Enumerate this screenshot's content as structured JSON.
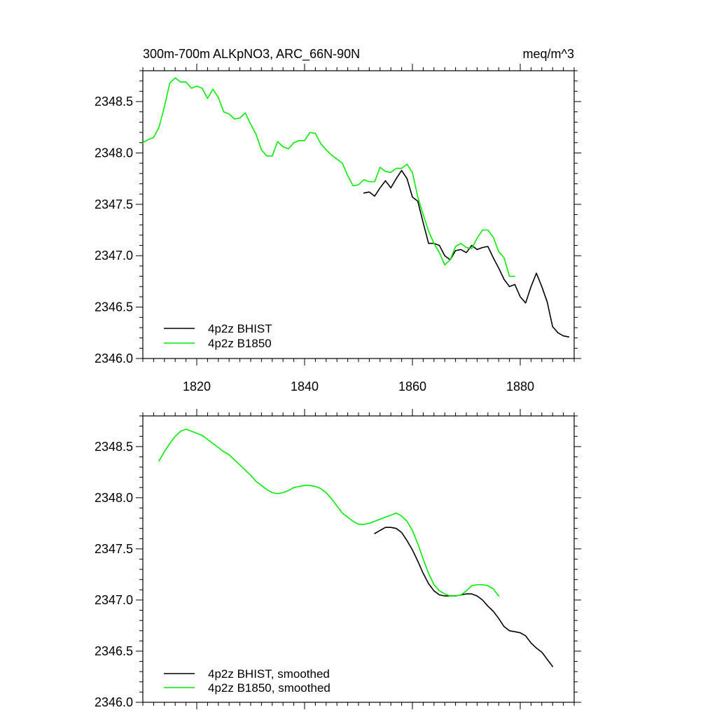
{
  "colors": {
    "bhist": "#000000",
    "b1850": "#00ee00",
    "axis": "#000000",
    "background": "#ffffff"
  },
  "chart_data": [
    {
      "type": "line",
      "title": "300m-700m ALKpNO3, ARC_66N-90N",
      "units_label": "meq/m^3",
      "xlim": [
        1810,
        1890
      ],
      "ylim": [
        2346.0,
        2348.8
      ],
      "xticks": [
        1820,
        1840,
        1860,
        1880
      ],
      "yticks": [
        2346.0,
        2346.5,
        2347.0,
        2347.5,
        2348.0,
        2348.5
      ],
      "xtick_labels": [
        "1820",
        "1840",
        "1860",
        "1880"
      ],
      "ytick_labels": [
        "2346.0",
        "2346.5",
        "2347.0",
        "2347.5",
        "2348.0",
        "2348.5"
      ],
      "legend": {
        "location": "bottom-left",
        "entries": [
          "4p2z BHIST",
          "4p2z B1850"
        ]
      },
      "series": [
        {
          "name": "4p2z BHIST",
          "color": "#000000",
          "x": [
            1851,
            1852,
            1853,
            1854,
            1855,
            1856,
            1857,
            1858,
            1859,
            1860,
            1861,
            1862,
            1863,
            1864,
            1865,
            1866,
            1867,
            1868,
            1869,
            1870,
            1871,
            1872,
            1873,
            1874,
            1875,
            1876,
            1877,
            1878,
            1879,
            1880,
            1881,
            1882,
            1883,
            1884,
            1885,
            1886,
            1887,
            1888,
            1889
          ],
          "y": [
            2347.61,
            2347.62,
            2347.58,
            2347.66,
            2347.73,
            2347.66,
            2347.75,
            2347.83,
            2347.75,
            2347.57,
            2347.53,
            2347.32,
            2347.12,
            2347.12,
            2347.1,
            2347.0,
            2346.96,
            2347.05,
            2347.06,
            2347.03,
            2347.1,
            2347.06,
            2347.08,
            2347.09,
            2346.98,
            2346.88,
            2346.77,
            2346.7,
            2346.72,
            2346.6,
            2346.54,
            2346.7,
            2346.83,
            2346.7,
            2346.55,
            2346.31,
            2346.25,
            2346.22,
            2346.21
          ]
        },
        {
          "name": "4p2z B1850",
          "color": "#00ee00",
          "x": [
            1810,
            1811,
            1812,
            1813,
            1814,
            1815,
            1816,
            1817,
            1818,
            1819,
            1820,
            1821,
            1822,
            1823,
            1824,
            1825,
            1826,
            1827,
            1828,
            1829,
            1830,
            1831,
            1832,
            1833,
            1834,
            1835,
            1836,
            1837,
            1838,
            1839,
            1840,
            1841,
            1842,
            1843,
            1844,
            1845,
            1846,
            1847,
            1848,
            1849,
            1850,
            1851,
            1852,
            1853,
            1854,
            1855,
            1856,
            1857,
            1858,
            1859,
            1860,
            1861,
            1862,
            1863,
            1864,
            1865,
            1866,
            1867,
            1868,
            1869,
            1870,
            1871,
            1872,
            1873,
            1874,
            1875,
            1876,
            1877,
            1878,
            1879
          ],
          "y": [
            2348.1,
            2348.13,
            2348.15,
            2348.25,
            2348.45,
            2348.68,
            2348.73,
            2348.69,
            2348.69,
            2348.63,
            2348.65,
            2348.63,
            2348.53,
            2348.62,
            2348.54,
            2348.4,
            2348.38,
            2348.33,
            2348.34,
            2348.39,
            2348.28,
            2348.18,
            2348.03,
            2347.97,
            2347.97,
            2348.11,
            2348.06,
            2348.04,
            2348.1,
            2348.12,
            2348.12,
            2348.2,
            2348.19,
            2348.09,
            2348.03,
            2347.98,
            2347.94,
            2347.9,
            2347.78,
            2347.68,
            2347.69,
            2347.74,
            2347.72,
            2347.72,
            2347.86,
            2347.82,
            2347.81,
            2347.85,
            2347.85,
            2347.89,
            2347.81,
            2347.57,
            2347.4,
            2347.24,
            2347.12,
            2347.03,
            2346.91,
            2346.96,
            2347.09,
            2347.12,
            2347.08,
            2347.07,
            2347.17,
            2347.25,
            2347.25,
            2347.18,
            2347.04,
            2346.98,
            2346.8,
            2346.8
          ]
        }
      ]
    },
    {
      "type": "line",
      "title": "",
      "xlim": [
        1810,
        1890
      ],
      "ylim": [
        2346.0,
        2348.8
      ],
      "xticks": [
        1820,
        1840,
        1860,
        1880
      ],
      "yticks": [
        2346.0,
        2346.5,
        2347.0,
        2347.5,
        2348.0,
        2348.5
      ],
      "ytick_labels": [
        "2346.0",
        "2346.5",
        "2347.0",
        "2347.5",
        "2348.0",
        "2348.5"
      ],
      "legend": {
        "location": "bottom-left",
        "entries": [
          "4p2z BHIST, smoothed",
          "4p2z B1850, smoothed"
        ]
      },
      "series": [
        {
          "name": "4p2z BHIST, smoothed",
          "color": "#000000",
          "x": [
            1853,
            1854,
            1855,
            1856,
            1857,
            1858,
            1859,
            1860,
            1861,
            1862,
            1863,
            1864,
            1865,
            1866,
            1867,
            1868,
            1869,
            1870,
            1871,
            1872,
            1873,
            1874,
            1875,
            1876,
            1877,
            1878,
            1879,
            1880,
            1881,
            1882,
            1883,
            1884,
            1885,
            1886
          ],
          "y": [
            2347.65,
            2347.68,
            2347.71,
            2347.71,
            2347.7,
            2347.66,
            2347.58,
            2347.49,
            2347.38,
            2347.26,
            2347.16,
            2347.09,
            2347.05,
            2347.04,
            2347.04,
            2347.04,
            2347.05,
            2347.06,
            2347.06,
            2347.04,
            2347.0,
            2346.94,
            2346.89,
            2346.82,
            2346.74,
            2346.7,
            2346.69,
            2346.68,
            2346.65,
            2346.58,
            2346.53,
            2346.49,
            2346.42,
            2346.35
          ]
        },
        {
          "name": "4p2z B1850, smoothed",
          "color": "#00ee00",
          "x": [
            1813,
            1814,
            1815,
            1816,
            1817,
            1818,
            1819,
            1820,
            1821,
            1822,
            1823,
            1824,
            1825,
            1826,
            1827,
            1828,
            1829,
            1830,
            1831,
            1832,
            1833,
            1834,
            1835,
            1836,
            1837,
            1838,
            1839,
            1840,
            1841,
            1842,
            1843,
            1844,
            1845,
            1846,
            1847,
            1848,
            1849,
            1850,
            1851,
            1852,
            1853,
            1854,
            1855,
            1856,
            1857,
            1858,
            1859,
            1860,
            1861,
            1862,
            1863,
            1864,
            1865,
            1866,
            1867,
            1868,
            1869,
            1870,
            1871,
            1872,
            1873,
            1874,
            1875,
            1876
          ],
          "y": [
            2348.36,
            2348.45,
            2348.53,
            2348.6,
            2348.65,
            2348.67,
            2348.65,
            2348.63,
            2348.61,
            2348.57,
            2348.53,
            2348.49,
            2348.45,
            2348.42,
            2348.37,
            2348.32,
            2348.27,
            2348.22,
            2348.16,
            2348.12,
            2348.08,
            2348.05,
            2348.04,
            2348.05,
            2348.07,
            2348.1,
            2348.11,
            2348.12,
            2348.12,
            2348.11,
            2348.09,
            2348.05,
            2347.99,
            2347.92,
            2347.85,
            2347.81,
            2347.77,
            2347.74,
            2347.74,
            2347.75,
            2347.77,
            2347.79,
            2347.81,
            2347.83,
            2347.85,
            2347.82,
            2347.77,
            2347.68,
            2347.55,
            2347.4,
            2347.26,
            2347.15,
            2347.09,
            2347.06,
            2347.04,
            2347.04,
            2347.05,
            2347.09,
            2347.14,
            2347.15,
            2347.15,
            2347.14,
            2347.11,
            2347.04
          ]
        }
      ]
    }
  ]
}
